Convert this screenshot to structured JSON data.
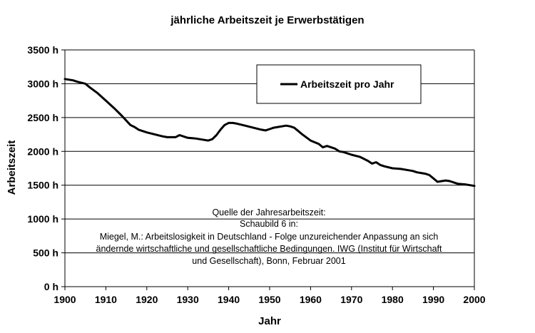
{
  "chart_data": {
    "type": "line",
    "title": "jährliche Arbeitszeit je Erwerbstätigen",
    "xlabel": "Jahr",
    "ylabel": "Arbeitszeit",
    "xlim": [
      1900,
      2000
    ],
    "ylim": [
      0,
      3500
    ],
    "x_ticks": [
      "1900",
      "1910",
      "1920",
      "1930",
      "1940",
      "1950",
      "1960",
      "1970",
      "1980",
      "1990",
      "2000"
    ],
    "y_ticks": [
      "0 h",
      "500 h",
      "1000 h",
      "1500 h",
      "2000 h",
      "2500 h",
      "3000 h",
      "3500 h"
    ],
    "grid": "horizontal",
    "legend_position": "top-right",
    "series": [
      {
        "name": "Arbeitszeit pro Jahr",
        "color": "#000000",
        "x": [
          1900,
          1902,
          1903,
          1905,
          1906,
          1908,
          1910,
          1912,
          1914,
          1916,
          1917,
          1918,
          1919,
          1920,
          1922,
          1924,
          1925,
          1927,
          1928,
          1929,
          1930,
          1932,
          1934,
          1935,
          1936,
          1937,
          1938,
          1939,
          1940,
          1941,
          1942,
          1944,
          1946,
          1948,
          1949,
          1950,
          1951,
          1952,
          1953,
          1954,
          1955,
          1956,
          1957,
          1958,
          1960,
          1962,
          1963,
          1964,
          1965,
          1966,
          1967,
          1968,
          1970,
          1972,
          1974,
          1975,
          1976,
          1977,
          1978,
          1980,
          1982,
          1984,
          1985,
          1986,
          1987,
          1988,
          1989,
          1990,
          1991,
          1992,
          1993,
          1994,
          1995,
          1996,
          1998,
          2000
        ],
        "values": [
          3070,
          3050,
          3030,
          3000,
          2950,
          2860,
          2750,
          2640,
          2520,
          2390,
          2360,
          2320,
          2300,
          2280,
          2250,
          2220,
          2210,
          2210,
          2240,
          2220,
          2200,
          2190,
          2170,
          2160,
          2180,
          2240,
          2320,
          2390,
          2420,
          2420,
          2410,
          2380,
          2350,
          2320,
          2310,
          2330,
          2350,
          2360,
          2370,
          2380,
          2370,
          2350,
          2300,
          2250,
          2160,
          2110,
          2060,
          2080,
          2060,
          2040,
          2000,
          1990,
          1950,
          1920,
          1860,
          1820,
          1840,
          1800,
          1780,
          1750,
          1740,
          1720,
          1710,
          1690,
          1680,
          1670,
          1650,
          1600,
          1550,
          1560,
          1570,
          1560,
          1540,
          1520,
          1510,
          1490
        ]
      }
    ],
    "annotation": [
      "Quelle der Jahresarbeitszeit:",
      "Schaubild 6 in:",
      "Miegel, M.: Arbeitslosigkeit in Deutschland - Folge unzureichender Anpassung an sich",
      "ändernde wirtschaftliche und gesellschaftliche Bedingungen. IWG (Institut für Wirtschaft",
      "und Gesellschaft), Bonn, Februar 2001"
    ]
  }
}
